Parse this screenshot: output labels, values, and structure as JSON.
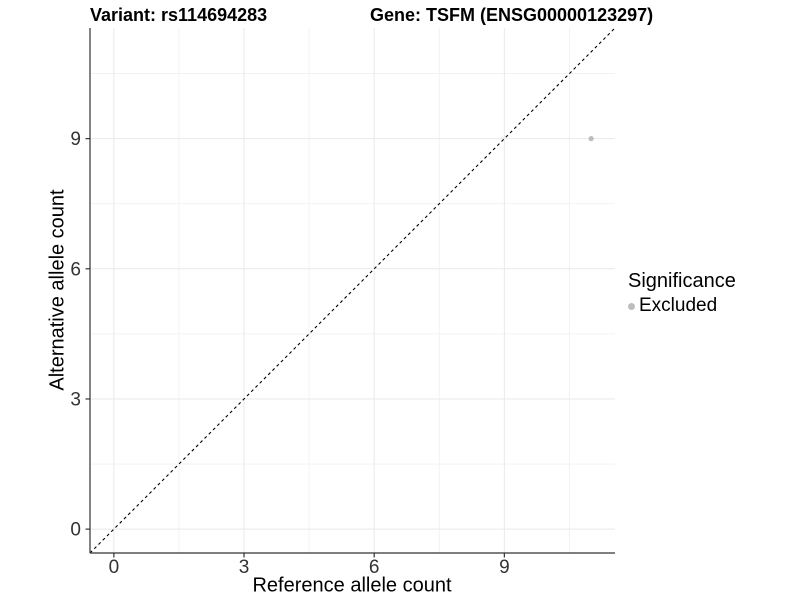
{
  "title": {
    "variant": "Variant: rs114694283",
    "gene": "Gene: TSFM (ENSG00000123297)"
  },
  "chart_data": {
    "type": "scatter",
    "title": "Variant: rs114694283    Gene: TSFM (ENSG00000123297)",
    "xlabel": "Reference allele count",
    "ylabel": "Alternative allele count",
    "xlim": [
      -0.55,
      11.55
    ],
    "ylim": [
      -0.55,
      11.55
    ],
    "x_ticks": [
      0,
      3,
      6,
      9
    ],
    "y_ticks": [
      0,
      3,
      6,
      9
    ],
    "x_minor_ticks": [
      1.5,
      4.5,
      7.5,
      10.5
    ],
    "y_minor_ticks": [
      1.5,
      4.5,
      7.5,
      10.5
    ],
    "grid": true,
    "reference_line": {
      "kind": "identity",
      "slope": 1,
      "intercept": 0,
      "style": "dashed"
    },
    "series": [
      {
        "name": "Excluded",
        "points": [
          {
            "x": 11,
            "y": 9
          }
        ]
      }
    ],
    "legend": {
      "title": "Significance",
      "position": "right",
      "items": [
        {
          "label": "Excluded"
        }
      ]
    }
  },
  "colors": {
    "point": "#bdbdbd",
    "legend_dot": "#bdbdbd",
    "grid_major": "#e9e9e9",
    "grid_minor": "#f1f1f1",
    "axis": "#333333",
    "tick_text": "#333333",
    "reference_line": "#000000",
    "background": "#ffffff"
  }
}
